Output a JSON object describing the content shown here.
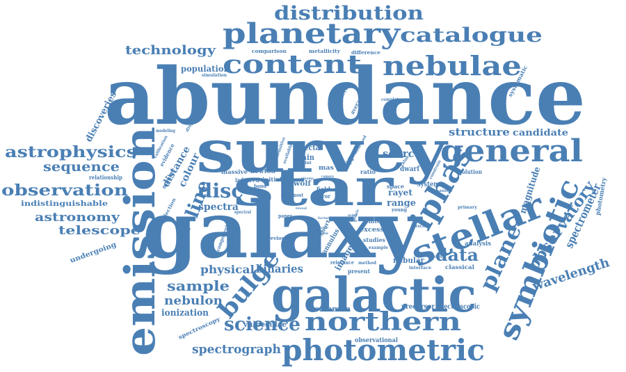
{
  "word_cloud": {
    "color": "#4a7fb4",
    "words": [
      {
        "id": "abundance",
        "text": "abundance"
      },
      {
        "id": "galaxy",
        "text": "galaxy"
      },
      {
        "id": "survey",
        "text": "survey"
      },
      {
        "id": "star",
        "text": "star"
      },
      {
        "id": "galactic",
        "text": "galactic"
      },
      {
        "id": "emission",
        "text": "emission"
      },
      {
        "id": "stellar",
        "text": "stellar"
      },
      {
        "id": "planetary",
        "text": "planetary"
      },
      {
        "id": "photometric",
        "text": "photometric"
      },
      {
        "id": "general",
        "text": "general"
      },
      {
        "id": "symbiotic",
        "text": "symbiotic"
      },
      {
        "id": "northern",
        "text": "northern"
      },
      {
        "id": "nebulae",
        "text": "nebulae"
      },
      {
        "id": "content",
        "text": "content"
      },
      {
        "id": "iphas",
        "text": "iphas"
      },
      {
        "id": "catalogue",
        "text": "catalogue"
      },
      {
        "id": "distribution",
        "text": "distribution"
      },
      {
        "id": "bulge",
        "text": "bulge"
      },
      {
        "id": "plane",
        "text": "plane"
      },
      {
        "id": "observatory",
        "text": "observatory"
      },
      {
        "id": "disc",
        "text": "disc"
      },
      {
        "id": "science",
        "text": "science"
      },
      {
        "id": "astrophysics",
        "text": "astrophysics"
      },
      {
        "id": "observation",
        "text": "observation"
      },
      {
        "id": "data",
        "text": "data"
      },
      {
        "id": "line",
        "text": "line"
      },
      {
        "id": "technology",
        "text": "technology"
      },
      {
        "id": "sequence",
        "text": "sequence"
      },
      {
        "id": "astronomy",
        "text": "astronomy"
      },
      {
        "id": "telescope",
        "text": "telescope"
      },
      {
        "id": "spectrograph",
        "text": "spectrograph"
      },
      {
        "id": "wavelength",
        "text": "wavelength"
      },
      {
        "id": "spectrometer",
        "text": "spectrometer"
      },
      {
        "id": "sample",
        "text": "sample"
      },
      {
        "id": "nebulon",
        "text": "nebulon"
      },
      {
        "id": "physical",
        "text": "physical"
      },
      {
        "id": "binaries",
        "text": "binaries"
      },
      {
        "id": "structure",
        "text": "structure"
      },
      {
        "id": "source",
        "text": "source"
      },
      {
        "id": "magnitude",
        "text": "magnitude"
      },
      {
        "id": "candidate",
        "text": "candidate"
      },
      {
        "id": "spectra",
        "text": "spectra"
      },
      {
        "id": "distance",
        "text": "distance"
      },
      {
        "id": "colour",
        "text": "colour"
      },
      {
        "id": "ionization",
        "text": "ionization"
      },
      {
        "id": "discoveries",
        "text": "discoveries"
      },
      {
        "id": "population",
        "text": "population"
      },
      {
        "id": "image",
        "text": "image"
      },
      {
        "id": "range",
        "text": "range"
      },
      {
        "id": "rayet",
        "text": "rayet"
      },
      {
        "id": "nebular",
        "text": "nebular"
      },
      {
        "id": "vulpeculae",
        "text": "vulpeculae"
      },
      {
        "id": "common",
        "text": "common"
      },
      {
        "id": "precursor",
        "text": "precursor"
      },
      {
        "id": "spectroscopic",
        "text": "spectroscopic"
      },
      {
        "id": "observational",
        "text": "observational"
      },
      {
        "id": "indistinguishable",
        "text": "indistinguishable"
      },
      {
        "id": "undergoing",
        "text": "undergoing"
      },
      {
        "id": "spectroscopy",
        "text": "spectroscopy"
      },
      {
        "id": "relationship",
        "text": "relationship"
      },
      {
        "id": "photometry",
        "text": "photometry"
      },
      {
        "id": "analysis",
        "text": "analysis"
      },
      {
        "id": "classical",
        "text": "classical"
      },
      {
        "id": "ejecta",
        "text": "ejecta"
      },
      {
        "id": "main",
        "text": "main"
      },
      {
        "id": "mas",
        "text": "mas"
      },
      {
        "id": "wolf",
        "text": "wolf"
      },
      {
        "id": "newton",
        "text": "newton"
      },
      {
        "id": "infrared",
        "text": "infrared"
      },
      {
        "id": "initial",
        "text": "initial"
      },
      {
        "id": "massive",
        "text": "massive"
      },
      {
        "id": "band",
        "text": "band"
      },
      {
        "id": "type",
        "text": "type"
      },
      {
        "id": "dwarf",
        "text": "dwarf"
      },
      {
        "id": "system",
        "text": "system"
      },
      {
        "id": "space",
        "text": "space"
      },
      {
        "id": "excess",
        "text": "excess"
      },
      {
        "id": "white",
        "text": "white"
      },
      {
        "id": "studies",
        "text": "studies"
      },
      {
        "id": "annulus",
        "text": "annulus"
      },
      {
        "id": "present",
        "text": "present"
      },
      {
        "id": "ratio",
        "text": "ratio"
      },
      {
        "id": "field",
        "text": "field"
      },
      {
        "id": "error",
        "text": "error"
      },
      {
        "id": "evolution",
        "text": "evolution"
      },
      {
        "id": "comparison",
        "text": "comparison"
      },
      {
        "id": "metallicity",
        "text": "metallicity"
      },
      {
        "id": "difference",
        "text": "difference"
      },
      {
        "id": "simulation",
        "text": "simulation"
      },
      {
        "id": "evidence",
        "text": "evidence"
      },
      {
        "id": "number",
        "text": "number"
      },
      {
        "id": "selection",
        "text": "selection"
      },
      {
        "id": "calibration",
        "text": "calibration"
      },
      {
        "id": "modeling",
        "text": "modeling"
      },
      {
        "id": "dispersion",
        "text": "dispersion"
      },
      {
        "id": "criterion",
        "text": "criterion"
      },
      {
        "id": "average",
        "text": "average"
      },
      {
        "id": "systematic",
        "text": "systematic"
      },
      {
        "id": "complete",
        "text": "complete"
      },
      {
        "id": "component",
        "text": "component"
      },
      {
        "id": "previous",
        "text": "previous"
      },
      {
        "id": "different",
        "text": "different"
      },
      {
        "id": "relevance",
        "text": "relevance"
      },
      {
        "id": "method",
        "text": "method"
      },
      {
        "id": "interface",
        "text": "interface"
      },
      {
        "id": "product",
        "text": "product"
      },
      {
        "id": "example",
        "text": "example"
      },
      {
        "id": "young",
        "text": "young"
      },
      {
        "id": "primary",
        "text": "primary"
      },
      {
        "id": "most",
        "text": "most"
      },
      {
        "id": "paper",
        "text": "paper"
      },
      {
        "id": "short",
        "text": "short"
      },
      {
        "id": "point",
        "text": "point"
      },
      {
        "id": "spectral",
        "text": "spectral"
      },
      {
        "id": "virtual",
        "text": "virtual"
      },
      {
        "id": "reveal",
        "text": "reveal"
      },
      {
        "id": "excited",
        "text": "excited"
      },
      {
        "id": "value",
        "text": "value"
      },
      {
        "id": "camera",
        "text": "camera"
      },
      {
        "id": "observed",
        "text": "observed"
      },
      {
        "id": "available",
        "text": "available"
      },
      {
        "id": "sensitive",
        "text": "sensitive"
      },
      {
        "id": "constrain",
        "text": "constrain"
      },
      {
        "id": "factor",
        "text": "factor"
      },
      {
        "id": "glass",
        "text": "glass"
      },
      {
        "id": "more",
        "text": "more"
      },
      {
        "id": "show",
        "text": "show"
      },
      {
        "id": "cent",
        "text": "cent"
      },
      {
        "id": "acc",
        "text": "acc"
      },
      {
        "id": "mimic",
        "text": "mimic"
      },
      {
        "id": "order",
        "text": "order"
      },
      {
        "id": "phase",
        "text": "phase"
      },
      {
        "id": "addition",
        "text": "addition"
      },
      {
        "id": "plasma",
        "text": "plasma"
      },
      {
        "id": "expect",
        "text": "expect"
      }
    ]
  }
}
